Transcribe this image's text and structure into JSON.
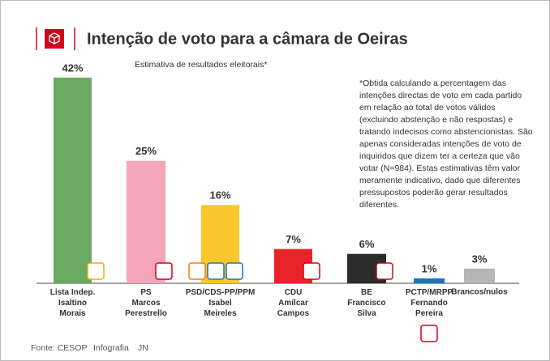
{
  "chart_data": {
    "type": "bar",
    "title": "Intenção de voto para a câmara de Oeiras",
    "subtitle": "Estimativa de resultados eleitorais*",
    "note": "*Obtida calculando a percentagem das intenções directas de voto em cada partido em relação ao total de votos válidos (excluindo abstenção e não respostas) e tratando indecisos como abstencionistas. São apenas consideradas intenções de voto de inquiridos que dizem ter a certeza que vão votar (N=984). Estas estimativas têm valor meramente indicativo, dado que diferentes pressupostos poderão gerar resultados diferentes.",
    "categories": [
      "Lista Indep.\nIsaltino\nMorais",
      "PS\nMarcos\nPerestrello",
      "PSD/CDS-PP/PPM\nIsabel\nMeireles",
      "CDU\nAmílcar\nCampos",
      "BE\nFrancisco\nSilva",
      "PCTP/MRPP\nFernando\nPereira",
      "Brancos/nulos"
    ],
    "values": [
      42,
      25,
      16,
      7,
      6,
      1,
      3
    ],
    "value_labels": [
      "42%",
      "25%",
      "16%",
      "7%",
      "6%",
      "1%",
      "3%"
    ],
    "colors": [
      "#6aaa5e",
      "#f4a6b8",
      "#fcc62d",
      "#e8232a",
      "#2b2b2b",
      "#1b75bb",
      "#b5b5b5"
    ],
    "source": "Fonte: CESOP",
    "credit": "Infografia",
    "publisher": "JN"
  }
}
